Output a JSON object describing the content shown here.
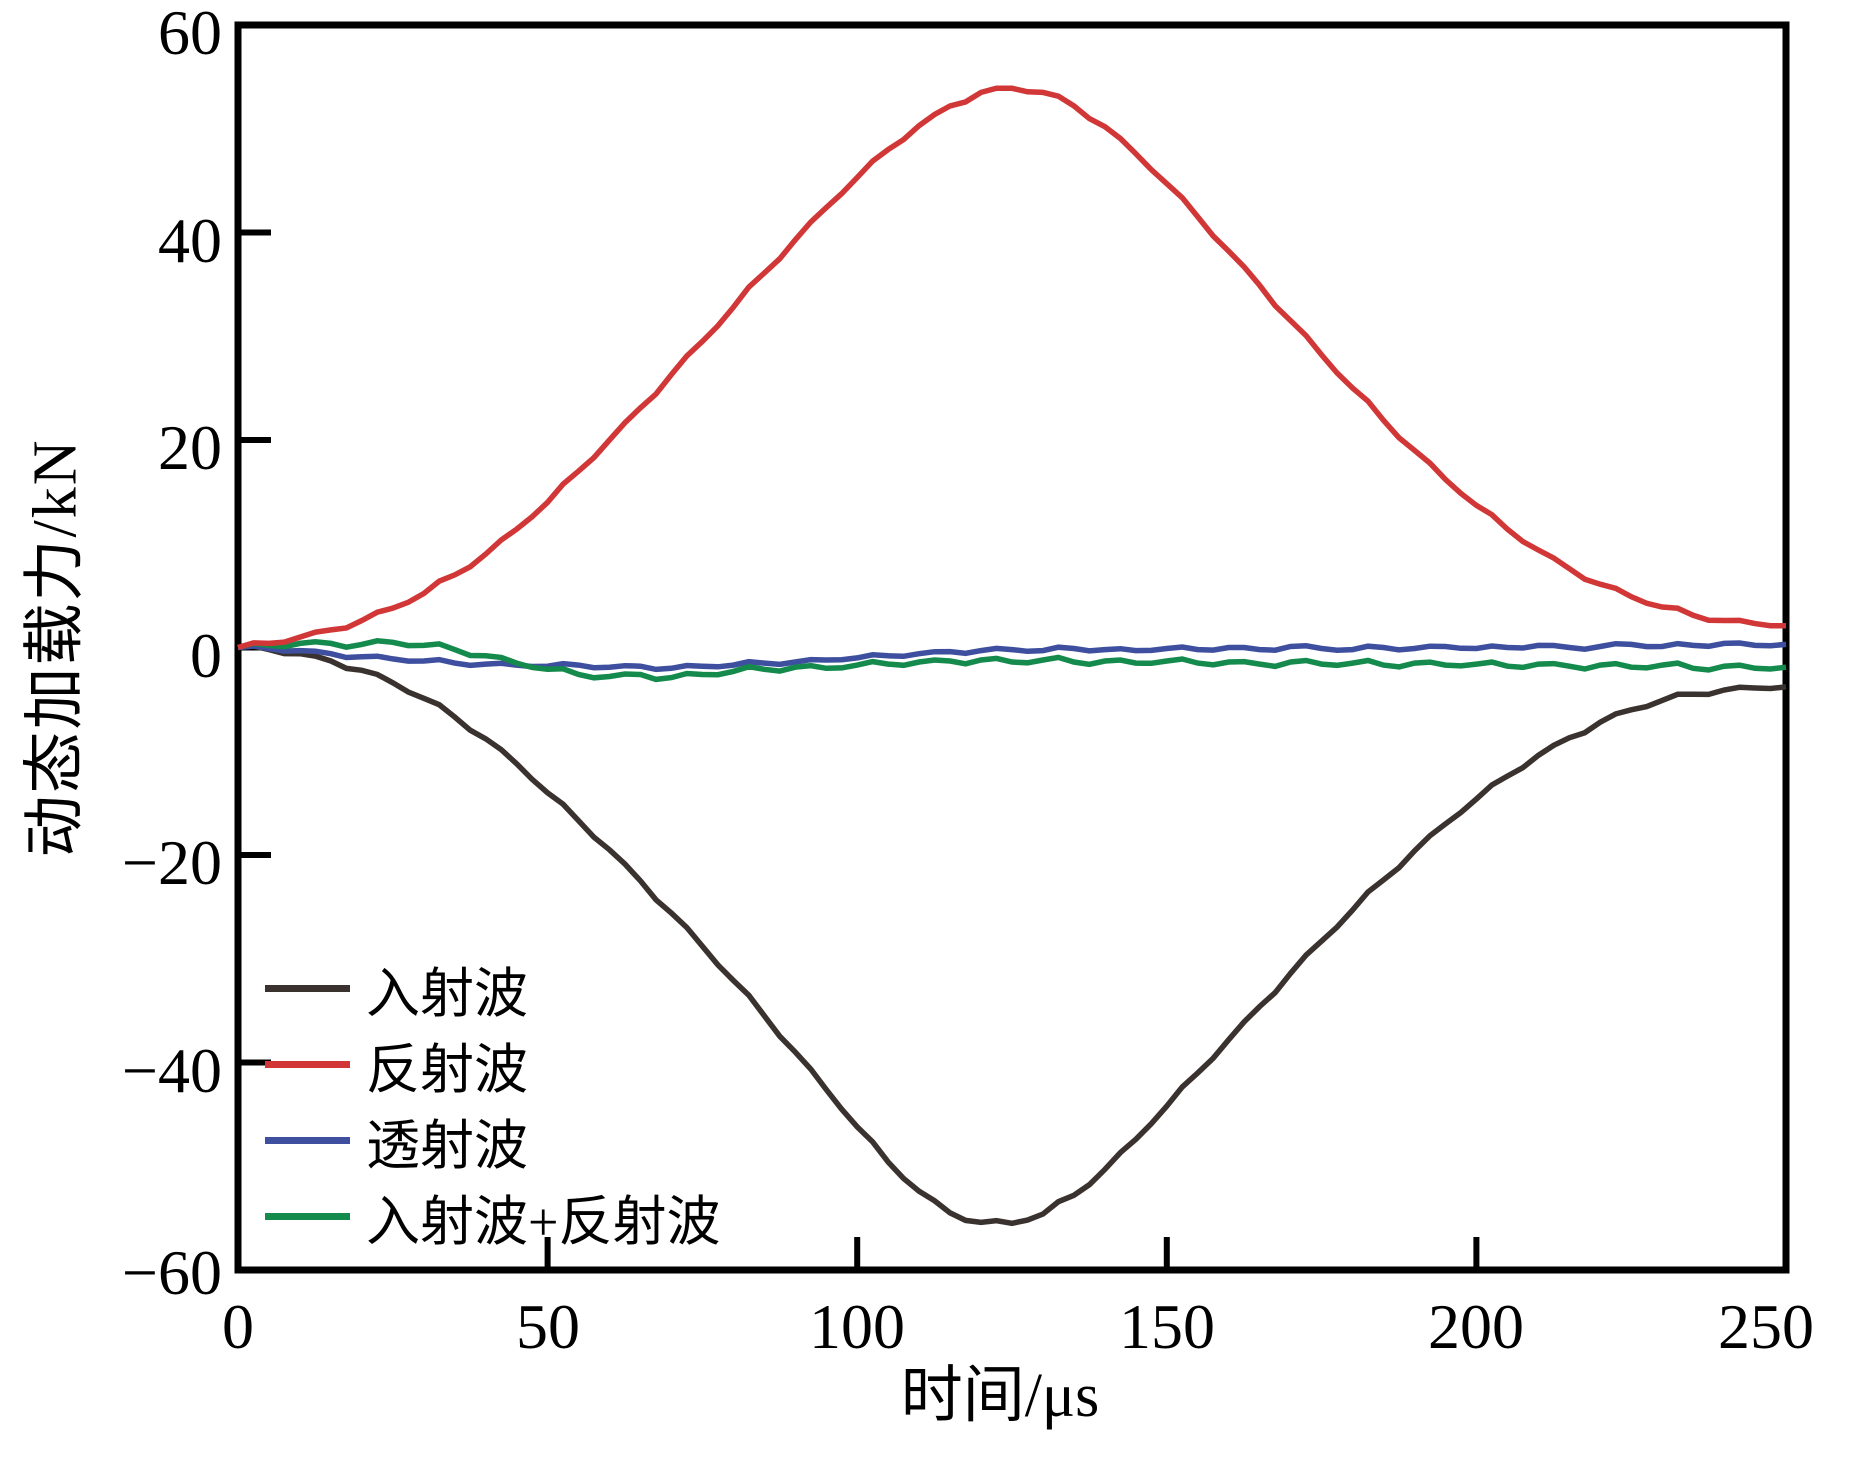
{
  "chart_data": {
    "type": "line",
    "title": "",
    "xlabel": "时间/μs",
    "ylabel": "动态加载力/kN",
    "xlim": [
      0,
      250
    ],
    "ylim": [
      -60,
      60
    ],
    "grid": false,
    "legend_position": "inside-lower-left",
    "axis_color": "#000000",
    "xticks": [
      0,
      50,
      100,
      150,
      200,
      250
    ],
    "yticks": [
      60,
      40,
      20,
      0,
      -20,
      -40,
      -60
    ],
    "xtick_labels": [
      "0",
      "50",
      "100",
      "150",
      "200",
      "250"
    ],
    "ytick_labels": [
      "60",
      "40",
      "20",
      "0",
      "−20",
      "−40",
      "−60"
    ],
    "series": [
      {
        "name": "入射波",
        "key": "incident-wave",
        "color": "#3a322f",
        "jitter": 0.25,
        "points": [
          [
            0,
            0
          ],
          [
            5,
            -0.2
          ],
          [
            10,
            -0.6
          ],
          [
            15,
            -1.3
          ],
          [
            20,
            -2.2
          ],
          [
            25,
            -3.4
          ],
          [
            30,
            -4.9
          ],
          [
            35,
            -6.7
          ],
          [
            40,
            -8.8
          ],
          [
            45,
            -11.2
          ],
          [
            50,
            -14
          ],
          [
            55,
            -16.7
          ],
          [
            60,
            -19.5
          ],
          [
            65,
            -22.5
          ],
          [
            70,
            -25.6
          ],
          [
            75,
            -28.8
          ],
          [
            80,
            -32.1
          ],
          [
            85,
            -35.5
          ],
          [
            90,
            -39
          ],
          [
            95,
            -42.6
          ],
          [
            100,
            -46.2
          ],
          [
            105,
            -49.6
          ],
          [
            110,
            -52.4
          ],
          [
            115,
            -54.5
          ],
          [
            120,
            -55.4
          ],
          [
            125,
            -55.5
          ],
          [
            130,
            -54.6
          ],
          [
            135,
            -52.8
          ],
          [
            140,
            -50.3
          ],
          [
            145,
            -47.4
          ],
          [
            150,
            -44.2
          ],
          [
            155,
            -41
          ],
          [
            160,
            -37.8
          ],
          [
            165,
            -34.6
          ],
          [
            170,
            -31.4
          ],
          [
            175,
            -28.3
          ],
          [
            180,
            -25.3
          ],
          [
            185,
            -22.4
          ],
          [
            190,
            -19.6
          ],
          [
            195,
            -17
          ],
          [
            200,
            -14.6
          ],
          [
            205,
            -12.4
          ],
          [
            210,
            -10.4
          ],
          [
            215,
            -8.7
          ],
          [
            220,
            -7.2
          ],
          [
            225,
            -6
          ],
          [
            230,
            -5.1
          ],
          [
            235,
            -4.5
          ],
          [
            240,
            -4.1
          ],
          [
            245,
            -3.9
          ],
          [
            250,
            -3.8
          ]
        ]
      },
      {
        "name": "反射波",
        "key": "reflected-wave",
        "color": "#d23737",
        "jitter": 0.25,
        "points": [
          [
            0,
            0
          ],
          [
            5,
            0.4
          ],
          [
            10,
            1
          ],
          [
            15,
            1.7
          ],
          [
            20,
            2.6
          ],
          [
            25,
            3.8
          ],
          [
            30,
            5.2
          ],
          [
            35,
            7
          ],
          [
            40,
            9
          ],
          [
            45,
            11.4
          ],
          [
            50,
            14
          ],
          [
            55,
            17
          ],
          [
            60,
            20
          ],
          [
            65,
            23.1
          ],
          [
            70,
            26.3
          ],
          [
            75,
            29.5
          ],
          [
            80,
            32.8
          ],
          [
            85,
            36.1
          ],
          [
            90,
            39.3
          ],
          [
            95,
            42.4
          ],
          [
            100,
            45.3
          ],
          [
            105,
            48
          ],
          [
            110,
            50.3
          ],
          [
            115,
            52.2
          ],
          [
            120,
            53.5
          ],
          [
            125,
            53.9
          ],
          [
            130,
            53.5
          ],
          [
            135,
            52.2
          ],
          [
            140,
            50.2
          ],
          [
            145,
            47.6
          ],
          [
            150,
            44.7
          ],
          [
            155,
            41.5
          ],
          [
            160,
            38.2
          ],
          [
            165,
            34.9
          ],
          [
            170,
            31.5
          ],
          [
            175,
            28.2
          ],
          [
            180,
            25
          ],
          [
            185,
            21.9
          ],
          [
            190,
            19
          ],
          [
            195,
            16.2
          ],
          [
            200,
            13.7
          ],
          [
            205,
            11.4
          ],
          [
            210,
            9.4
          ],
          [
            215,
            7.6
          ],
          [
            220,
            6.1
          ],
          [
            225,
            4.9
          ],
          [
            230,
            3.9
          ],
          [
            235,
            3.1
          ],
          [
            240,
            2.6
          ],
          [
            245,
            2.3
          ],
          [
            250,
            2.1
          ]
        ]
      },
      {
        "name": "透射波",
        "key": "transmitted-wave",
        "color": "#3d4f9e",
        "jitter": 0.2,
        "points": [
          [
            0,
            0
          ],
          [
            5,
            -0.1
          ],
          [
            10,
            -0.3
          ],
          [
            15,
            -0.6
          ],
          [
            20,
            -0.9
          ],
          [
            25,
            -1.1
          ],
          [
            30,
            -1.3
          ],
          [
            35,
            -1.5
          ],
          [
            40,
            -1.6
          ],
          [
            45,
            -1.7
          ],
          [
            50,
            -1.8
          ],
          [
            55,
            -1.7
          ],
          [
            60,
            -1.9
          ],
          [
            65,
            -1.8
          ],
          [
            70,
            -2
          ],
          [
            75,
            -1.8
          ],
          [
            80,
            -1.7
          ],
          [
            85,
            -1.5
          ],
          [
            90,
            -1.4
          ],
          [
            95,
            -1.2
          ],
          [
            100,
            -1
          ],
          [
            105,
            -0.8
          ],
          [
            110,
            -0.6
          ],
          [
            115,
            -0.4
          ],
          [
            120,
            -0.3
          ],
          [
            125,
            -0.2
          ],
          [
            130,
            -0.3
          ],
          [
            135,
            -0.1
          ],
          [
            140,
            -0.2
          ],
          [
            145,
            -0.3
          ],
          [
            150,
            -0.1
          ],
          [
            155,
            -0.2
          ],
          [
            160,
            0
          ],
          [
            165,
            -0.2
          ],
          [
            170,
            0.1
          ],
          [
            175,
            -0.1
          ],
          [
            180,
            -0.2
          ],
          [
            185,
            0
          ],
          [
            190,
            -0.1
          ],
          [
            195,
            0.1
          ],
          [
            200,
            -0.1
          ],
          [
            205,
            0
          ],
          [
            210,
            0.2
          ],
          [
            215,
            0
          ],
          [
            220,
            0.1
          ],
          [
            225,
            0.3
          ],
          [
            230,
            0.1
          ],
          [
            235,
            0.2
          ],
          [
            240,
            0.4
          ],
          [
            245,
            0.2
          ],
          [
            250,
            0.3
          ]
        ]
      },
      {
        "name": "入射波+反射波",
        "key": "incident-plus-reflected-wave",
        "color": "#148a4c",
        "jitter": 0.3,
        "points": [
          [
            0,
            0
          ],
          [
            5,
            0.2
          ],
          [
            10,
            0.4
          ],
          [
            15,
            0.4
          ],
          [
            20,
            0.3
          ],
          [
            25,
            0.5
          ],
          [
            30,
            0.2
          ],
          [
            35,
            -0.2
          ],
          [
            40,
            -0.8
          ],
          [
            45,
            -1.5
          ],
          [
            50,
            -2.1
          ],
          [
            55,
            -2.6
          ],
          [
            60,
            -2.8
          ],
          [
            65,
            -2.6
          ],
          [
            70,
            -2.9
          ],
          [
            75,
            -2.6
          ],
          [
            80,
            -2.3
          ],
          [
            85,
            -2.1
          ],
          [
            90,
            -1.9
          ],
          [
            95,
            -2
          ],
          [
            100,
            -1.7
          ],
          [
            105,
            -1.6
          ],
          [
            110,
            -1.4
          ],
          [
            115,
            -1.3
          ],
          [
            120,
            -1.2
          ],
          [
            125,
            -1.4
          ],
          [
            130,
            -1.2
          ],
          [
            135,
            -1.4
          ],
          [
            140,
            -1.3
          ],
          [
            145,
            -1.5
          ],
          [
            150,
            -1.3
          ],
          [
            155,
            -1.5
          ],
          [
            160,
            -1.4
          ],
          [
            165,
            -1.6
          ],
          [
            170,
            -1.4
          ],
          [
            175,
            -1.6
          ],
          [
            180,
            -1.5
          ],
          [
            185,
            -1.7
          ],
          [
            190,
            -1.5
          ],
          [
            195,
            -1.7
          ],
          [
            200,
            -1.6
          ],
          [
            205,
            -1.8
          ],
          [
            210,
            -1.6
          ],
          [
            215,
            -1.8
          ],
          [
            220,
            -1.7
          ],
          [
            225,
            -1.9
          ],
          [
            230,
            -1.7
          ],
          [
            235,
            -2
          ],
          [
            240,
            -1.8
          ],
          [
            245,
            -2
          ],
          [
            250,
            -1.9
          ]
        ]
      }
    ]
  }
}
